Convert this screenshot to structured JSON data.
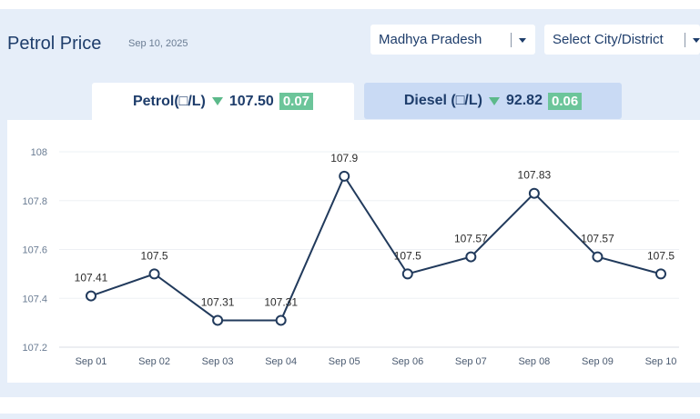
{
  "header": {
    "title": "Petrol Price",
    "date": "Sep 10, 2025"
  },
  "filters": {
    "state": "Madhya Pradesh",
    "city": "Select City/District"
  },
  "tabs": [
    {
      "label": "Petrol(□/L)",
      "price": "107.50",
      "change": "0.07",
      "active": true
    },
    {
      "label": "Diesel (□/L)",
      "price": "92.82",
      "change": "0.06",
      "active": false
    }
  ],
  "colors": {
    "line": "#213a5c",
    "down_arrow": "#5cb98a",
    "badge": "#6cc59a",
    "active_tab": "#ffffff",
    "inactive_tab": "#c9daf4",
    "panel_bg": "#e6eef9"
  },
  "chart_data": {
    "type": "line",
    "categories": [
      "Sep 01",
      "Sep 02",
      "Sep 03",
      "Sep 04",
      "Sep 05",
      "Sep 06",
      "Sep 07",
      "Sep 08",
      "Sep 09",
      "Sep 10"
    ],
    "series": [
      {
        "values": [
          107.41,
          107.5,
          107.31,
          107.31,
          107.9,
          107.5,
          107.57,
          107.83,
          107.57,
          107.5
        ]
      }
    ],
    "data_labels": [
      "107.41",
      "107.5",
      "107.31",
      "107.31",
      "107.9",
      "107.5",
      "107.57",
      "107.83",
      "107.57",
      "107.5"
    ],
    "yticks": [
      "107.2",
      "107.4",
      "107.6",
      "107.8",
      "108"
    ],
    "ylim": [
      107.2,
      108
    ],
    "grid": true
  }
}
